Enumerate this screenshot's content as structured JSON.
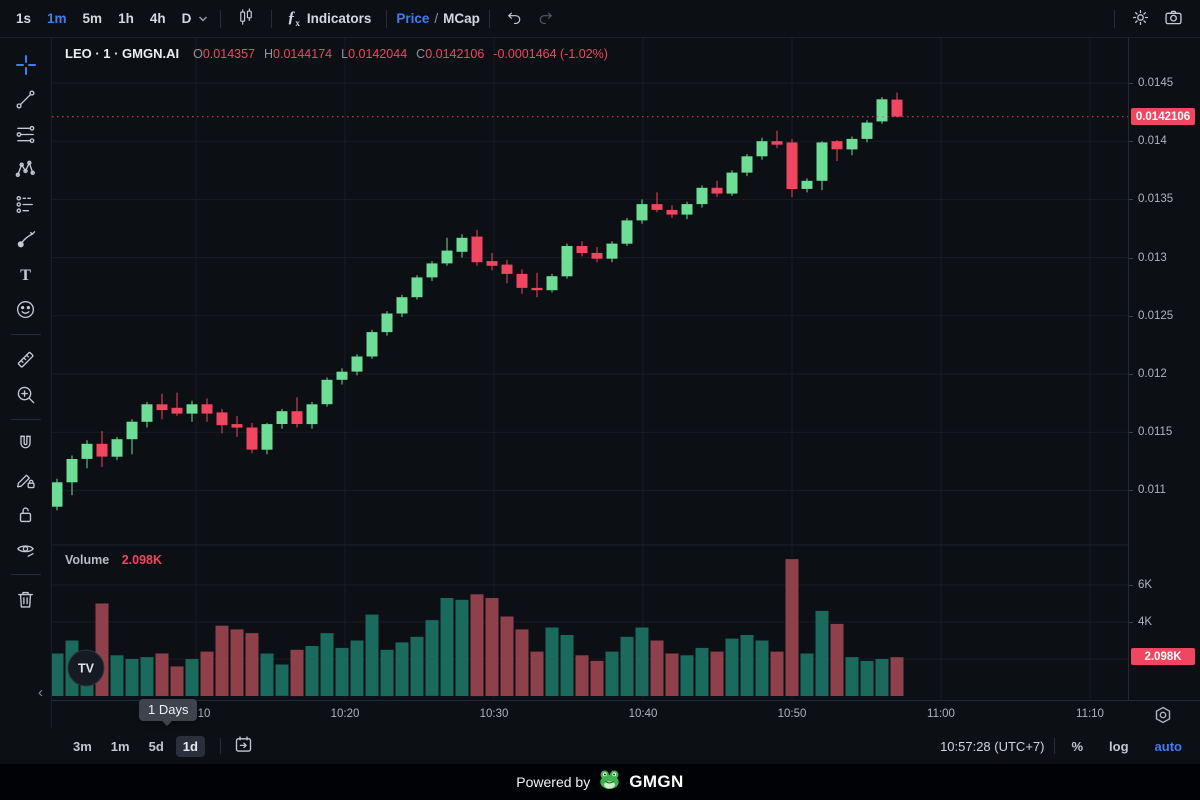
{
  "toolbar": {
    "timeframes": [
      "1s",
      "1m",
      "5m",
      "1h",
      "4h",
      "D"
    ],
    "active_timeframe": "1m",
    "indicators_label": "Indicators",
    "price_label": "Price",
    "slash_label": "/",
    "mcap_label": "MCap"
  },
  "symbol_header": {
    "title": "LEO · 1 · GMGN.AI",
    "o_label": "O",
    "o": "0.014357",
    "h_label": "H",
    "h": "0.0144174",
    "l_label": "L",
    "l": "0.0142044",
    "c_label": "C",
    "c": "0.0142106",
    "change": "-0.0001464 (-1.02%)"
  },
  "sidebar": {
    "tools": [
      {
        "icon": "crosshair-icon",
        "name": "Crosshair",
        "active": true
      },
      {
        "icon": "trend-line-icon",
        "name": "Trend Line"
      },
      {
        "icon": "parallel-lines-icon",
        "name": "Parallel Lines"
      },
      {
        "icon": "pattern-icon",
        "name": "XABCD Pattern"
      },
      {
        "icon": "forecast-icon",
        "name": "Forecast"
      },
      {
        "icon": "brush-icon",
        "name": "Brush"
      },
      {
        "icon": "text-icon",
        "name": "Text"
      },
      {
        "icon": "emoji-icon",
        "name": "Emoji"
      },
      {
        "icon": "ruler-icon",
        "name": "Measure",
        "divider_before": true
      },
      {
        "icon": "zoom-in-icon",
        "name": "Zoom In"
      },
      {
        "icon": "magnet-icon",
        "name": "Magnet Mode",
        "divider_before": true
      },
      {
        "icon": "drawing-lock-icon",
        "name": "Lock Drawing"
      },
      {
        "icon": "lock-icon",
        "name": "Lock All Drawings"
      },
      {
        "icon": "hide-drawings-icon",
        "name": "Hide Drawings"
      },
      {
        "icon": "delete-drawings-icon",
        "name": "Remove Drawings",
        "divider_before": true
      }
    ]
  },
  "volume_pane": {
    "label": "Volume",
    "value": "2.098K"
  },
  "price_axis": {
    "current_price_badge": "0.0142106"
  },
  "volume_axis": {
    "current_volume_badge": "2.098K"
  },
  "time_axis": {
    "tooltip": "1 Days"
  },
  "bottom_bar": {
    "ranges": [
      "3m",
      "1m",
      "5d",
      "1d"
    ],
    "active_range": "1d",
    "clock": "10:57:28 (UTC+7)",
    "percent_label": "%",
    "log_label": "log",
    "auto_label": "auto"
  },
  "footer": {
    "powered_by": "Powered by",
    "brand": "GMGN"
  },
  "watermark": {
    "logo_text": "TV"
  },
  "colors": {
    "up": "#6ede97",
    "down": "#f1465f",
    "volume_up": "#1a6a5e",
    "volume_down": "#8e414b",
    "accent": "#3f7df2",
    "badge": "#f1465f",
    "grid": "#171c23",
    "pane_separator": "#1d232c"
  },
  "chart_data": {
    "type": "candlestick_with_volume",
    "symbol": "LEO",
    "interval": "1m",
    "source": "GMGN.AI",
    "price_axis_ticks": [
      "0.0145",
      "0.014",
      "0.0135",
      "0.013",
      "0.0125",
      "0.012",
      "0.0115",
      "0.011"
    ],
    "volume_axis_ticks": [
      "6K",
      "4K"
    ],
    "volume_grid": [
      6,
      4,
      2
    ],
    "time_ticks": [
      "10:10",
      "10:20",
      "10:30",
      "10:40",
      "10:50",
      "11:00",
      "11:10"
    ],
    "last_price": 0.0142106,
    "last_volume_k": 2.098,
    "price_range_visible": [
      0.0108,
      0.0147
    ],
    "candles_ohlcv": [
      [
        0.01086,
        0.0111,
        0.01083,
        0.01107,
        2.3
      ],
      [
        0.01107,
        0.0113,
        0.01096,
        0.01127,
        3.0
      ],
      [
        0.01127,
        0.01143,
        0.01119,
        0.0114,
        2.1
      ],
      [
        0.0114,
        0.01151,
        0.0112,
        0.01129,
        5.0
      ],
      [
        0.01129,
        0.01146,
        0.01126,
        0.01144,
        2.2
      ],
      [
        0.01144,
        0.01161,
        0.01131,
        0.01159,
        2.0
      ],
      [
        0.01159,
        0.01176,
        0.01154,
        0.01174,
        2.1
      ],
      [
        0.01174,
        0.01183,
        0.01161,
        0.01169,
        2.3
      ],
      [
        0.01171,
        0.01184,
        0.01164,
        0.01166,
        1.6
      ],
      [
        0.01166,
        0.01177,
        0.01159,
        0.01174,
        2.0
      ],
      [
        0.01174,
        0.01179,
        0.01159,
        0.01166,
        2.4
      ],
      [
        0.01167,
        0.0117,
        0.01149,
        0.01156,
        3.8
      ],
      [
        0.01157,
        0.01164,
        0.01146,
        0.01154,
        3.6
      ],
      [
        0.01154,
        0.01158,
        0.01132,
        0.01135,
        3.4
      ],
      [
        0.01135,
        0.01158,
        0.01131,
        0.01157,
        2.3
      ],
      [
        0.01157,
        0.0117,
        0.01153,
        0.01168,
        1.7
      ],
      [
        0.01168,
        0.0118,
        0.01154,
        0.01157,
        2.5
      ],
      [
        0.01157,
        0.01176,
        0.01153,
        0.01174,
        2.7
      ],
      [
        0.01174,
        0.01197,
        0.01172,
        0.01195,
        3.4
      ],
      [
        0.01195,
        0.01205,
        0.01191,
        0.01202,
        2.6
      ],
      [
        0.01202,
        0.01217,
        0.01199,
        0.01215,
        3.0
      ],
      [
        0.01215,
        0.01238,
        0.01213,
        0.01236,
        4.4
      ],
      [
        0.01236,
        0.01254,
        0.01233,
        0.01252,
        2.5
      ],
      [
        0.01252,
        0.01268,
        0.01249,
        0.01266,
        2.9
      ],
      [
        0.01266,
        0.01285,
        0.01264,
        0.01283,
        3.2
      ],
      [
        0.01283,
        0.01297,
        0.0128,
        0.01295,
        4.1
      ],
      [
        0.01295,
        0.01317,
        0.01293,
        0.01306,
        5.3
      ],
      [
        0.01305,
        0.0132,
        0.013,
        0.01317,
        5.2
      ],
      [
        0.01318,
        0.01324,
        0.01293,
        0.01296,
        5.5
      ],
      [
        0.01297,
        0.01304,
        0.01289,
        0.01293,
        5.3
      ],
      [
        0.01294,
        0.01298,
        0.01278,
        0.01286,
        4.3
      ],
      [
        0.01286,
        0.0129,
        0.01269,
        0.01274,
        3.6
      ],
      [
        0.01274,
        0.01287,
        0.01266,
        0.01272,
        2.4
      ],
      [
        0.01272,
        0.01286,
        0.0127,
        0.01284,
        3.7
      ],
      [
        0.01284,
        0.01312,
        0.01282,
        0.0131,
        3.3
      ],
      [
        0.0131,
        0.01314,
        0.01301,
        0.01304,
        2.2
      ],
      [
        0.01304,
        0.01309,
        0.01296,
        0.01299,
        1.9
      ],
      [
        0.01299,
        0.01314,
        0.01296,
        0.01312,
        2.4
      ],
      [
        0.01312,
        0.01334,
        0.0131,
        0.01332,
        3.2
      ],
      [
        0.01332,
        0.0135,
        0.01329,
        0.01346,
        3.7
      ],
      [
        0.01346,
        0.01356,
        0.01339,
        0.01341,
        3.0
      ],
      [
        0.01341,
        0.01345,
        0.01334,
        0.01337,
        2.3
      ],
      [
        0.01337,
        0.01348,
        0.01333,
        0.01346,
        2.2
      ],
      [
        0.01346,
        0.01362,
        0.01343,
        0.0136,
        2.6
      ],
      [
        0.0136,
        0.01366,
        0.01352,
        0.01355,
        2.4
      ],
      [
        0.01355,
        0.01375,
        0.01353,
        0.01373,
        3.1
      ],
      [
        0.01373,
        0.01389,
        0.0137,
        0.01387,
        3.3
      ],
      [
        0.01387,
        0.01403,
        0.01384,
        0.014,
        3.0
      ],
      [
        0.014,
        0.01409,
        0.01394,
        0.01397,
        2.4
      ],
      [
        0.01399,
        0.01402,
        0.01352,
        0.01359,
        7.4
      ],
      [
        0.01359,
        0.01368,
        0.01356,
        0.01366,
        2.3
      ],
      [
        0.01366,
        0.014,
        0.01358,
        0.01399,
        4.6
      ],
      [
        0.014,
        0.01401,
        0.01383,
        0.01393,
        3.9
      ],
      [
        0.01393,
        0.01404,
        0.01388,
        0.01402,
        2.1
      ],
      [
        0.01402,
        0.01418,
        0.01399,
        0.01416,
        1.9
      ],
      [
        0.01417,
        0.01438,
        0.01415,
        0.01436,
        2.0
      ],
      [
        0.014357,
        0.0144174,
        0.0142044,
        0.0142106,
        2.098
      ]
    ]
  }
}
